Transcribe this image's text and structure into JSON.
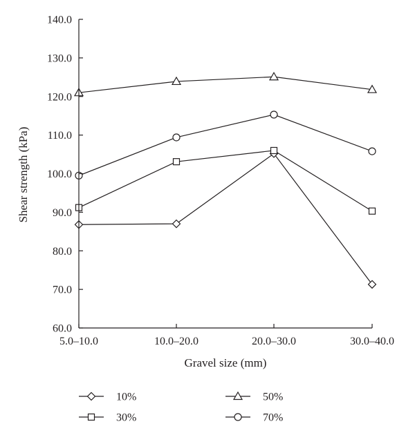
{
  "chart_data": {
    "type": "line",
    "xlabel": "Gravel size (mm)",
    "ylabel": "Shear strength (kPa)",
    "categories": [
      "5.0–10.0",
      "10.0–20.0",
      "20.0–30.0",
      "30.0–40.0"
    ],
    "ylim": [
      60.0,
      140.0
    ],
    "yticks": [
      "60.0",
      "70.0",
      "80.0",
      "90.0",
      "100.0",
      "110.0",
      "120.0",
      "130.0",
      "140.0"
    ],
    "grid": false,
    "legend_position": "bottom",
    "series": [
      {
        "name": "10%",
        "marker": "diamond",
        "values": [
          86.8,
          87.0,
          105.2,
          71.3
        ]
      },
      {
        "name": "30%",
        "marker": "square",
        "values": [
          91.2,
          103.1,
          106.0,
          90.3
        ]
      },
      {
        "name": "50%",
        "marker": "triangle",
        "values": [
          121.0,
          123.9,
          125.1,
          121.8
        ]
      },
      {
        "name": "70%",
        "marker": "circle",
        "values": [
          99.5,
          109.4,
          115.3,
          105.8
        ]
      }
    ],
    "colors": {
      "ink": "#231f20",
      "marker_fill": "#ffffff"
    }
  }
}
